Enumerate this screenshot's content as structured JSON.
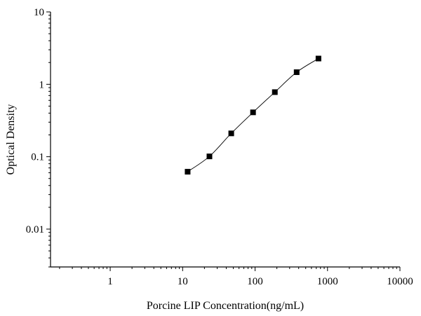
{
  "chart_data": {
    "type": "scatter",
    "title": "",
    "xlabel": "Porcine LIP Concentration(ng/mL)",
    "ylabel": "Optical Density",
    "x_scale": "log",
    "y_scale": "log",
    "xlim": [
      0.15,
      10000
    ],
    "ylim": [
      0.003,
      10
    ],
    "x_ticks": [
      {
        "value": 1,
        "label": "1"
      },
      {
        "value": 10,
        "label": "10"
      },
      {
        "value": 100,
        "label": "100"
      },
      {
        "value": 1000,
        "label": "1000"
      },
      {
        "value": 10000,
        "label": "10000"
      }
    ],
    "y_ticks": [
      {
        "value": 0.01,
        "label": "0.01"
      },
      {
        "value": 0.1,
        "label": "0.1"
      },
      {
        "value": 1,
        "label": "1"
      },
      {
        "value": 10,
        "label": "10"
      }
    ],
    "grid": false,
    "legend": "none",
    "series": [
      {
        "x": [
          11.72,
          23.44,
          46.88,
          93.75,
          187.5,
          375,
          750
        ],
        "y": [
          0.062,
          0.101,
          0.21,
          0.41,
          0.78,
          1.47,
          2.27
        ],
        "marker": "square",
        "line": "smooth",
        "color": "#000000"
      }
    ]
  }
}
